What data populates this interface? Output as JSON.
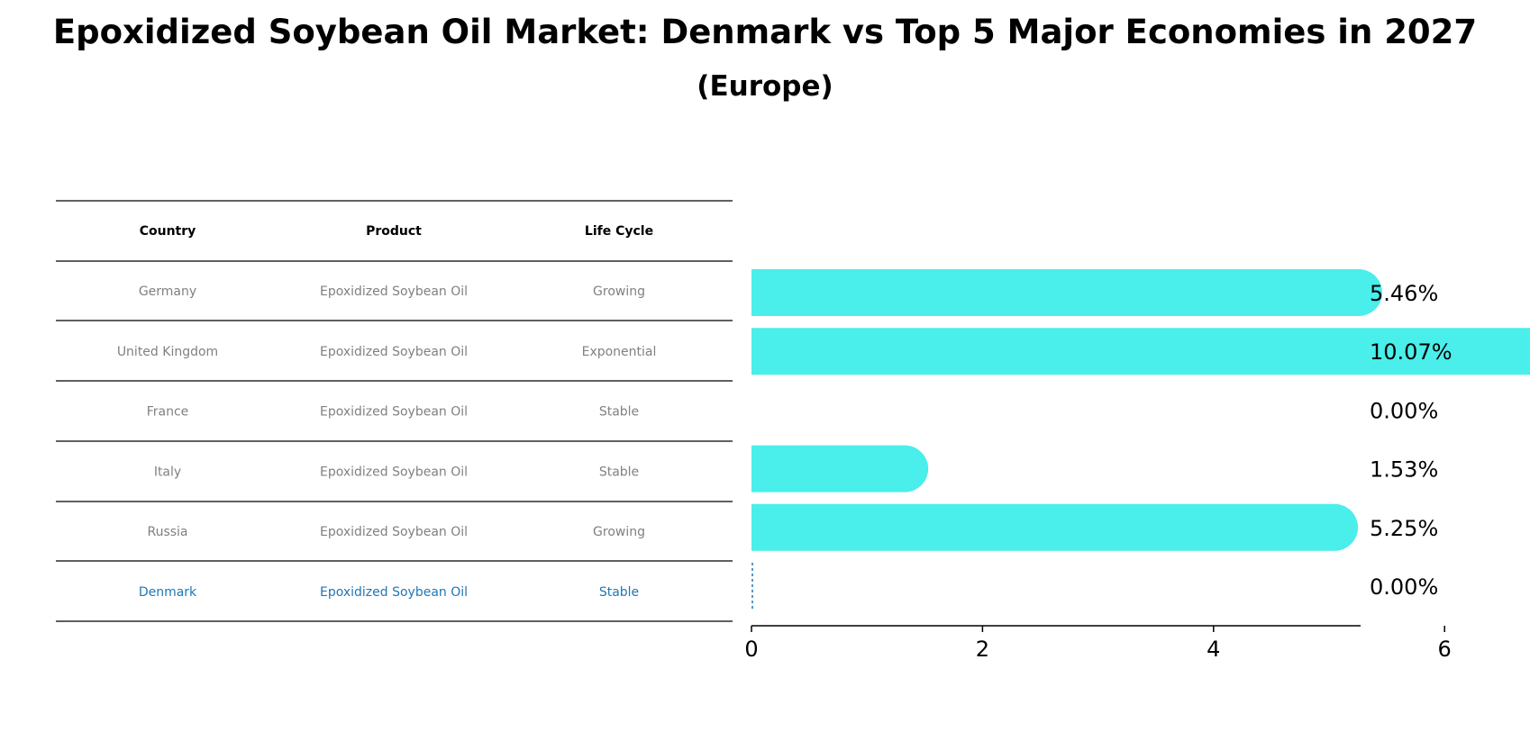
{
  "title": "Epoxidized Soybean Oil Market: Denmark vs Top 5 Major Economies in 2027",
  "subtitle": "(Europe)",
  "colors": {
    "bar": "#4aeeea",
    "highlight": "#1f77b4",
    "muted": "#808080",
    "rule": "#000000"
  },
  "table": {
    "headers": [
      "Country",
      "Product",
      "Life Cycle"
    ],
    "rows": [
      [
        "Germany",
        "Epoxidized Soybean Oil",
        "Growing"
      ],
      [
        "United Kingdom",
        "Epoxidized Soybean Oil",
        "Exponential"
      ],
      [
        "France",
        "Epoxidized Soybean Oil",
        "Stable"
      ],
      [
        "Italy",
        "Epoxidized Soybean Oil",
        "Stable"
      ],
      [
        "Russia",
        "Epoxidized Soybean Oil",
        "Growing"
      ],
      [
        "Denmark",
        "Epoxidized Soybean Oil",
        "Stable"
      ]
    ],
    "highlight_row": 5
  },
  "chart_data": {
    "type": "bar",
    "orientation": "horizontal",
    "categories": [
      "Germany",
      "United Kingdom",
      "France",
      "Italy",
      "Russia",
      "Denmark"
    ],
    "values": [
      5.46,
      10.07,
      0.0,
      1.53,
      5.25,
      0.0
    ],
    "value_labels": [
      "5.46%",
      "10.07%",
      "0.00%",
      "1.53%",
      "5.25%",
      "0.00%"
    ],
    "xlim": [
      0,
      10.5
    ],
    "xticks": [
      0,
      2,
      4,
      6,
      8,
      10
    ],
    "grid": false
  }
}
